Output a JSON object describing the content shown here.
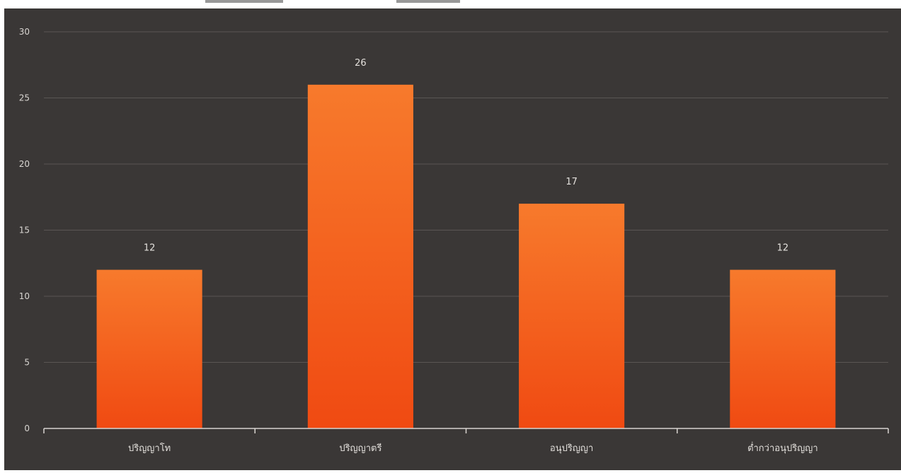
{
  "chart_data": {
    "type": "bar",
    "categories": [
      "ปริญญาโท",
      "ปริญญาตรี",
      "อนุปริญญา",
      "ต่ำกว่าอนุปริญญา"
    ],
    "values": [
      12,
      26,
      17,
      12
    ],
    "ylim": [
      0,
      30
    ],
    "yticks": [
      0,
      5,
      10,
      15,
      20,
      25,
      30
    ],
    "grid": true,
    "data_labels": true,
    "colors": {
      "background": "#3a3736",
      "bar_top": "#f77a2c",
      "bar_bottom": "#f04a12",
      "grid": "#5a5654",
      "axis": "#d8d4d0"
    }
  }
}
